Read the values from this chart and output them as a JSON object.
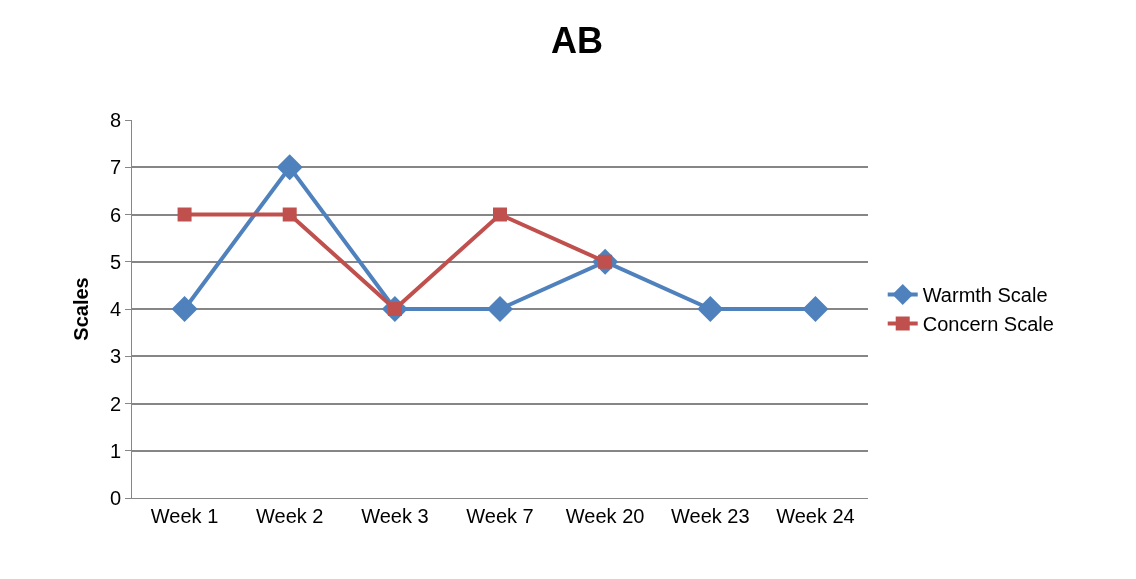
{
  "chart_data": {
    "type": "line",
    "title": "AB",
    "ylabel": "Scales",
    "categories": [
      "Week 1",
      "Week 2",
      "Week 3",
      "Week 7",
      "Week 20",
      "Week 23",
      "Week 24"
    ],
    "series": [
      {
        "name": "Warmth Scale",
        "color": "#4f81bd",
        "marker": "diamond",
        "values": [
          4,
          7,
          4,
          4,
          5,
          4,
          4
        ]
      },
      {
        "name": "Concern Scale",
        "color": "#c0504d",
        "marker": "square",
        "values": [
          6,
          6,
          4,
          6,
          5,
          null,
          null
        ]
      }
    ],
    "ylim": [
      0,
      8
    ],
    "yticks": [
      0,
      1,
      2,
      3,
      4,
      5,
      6,
      7,
      8
    ],
    "grid": "y",
    "legend": "right",
    "line_style": "solid"
  }
}
